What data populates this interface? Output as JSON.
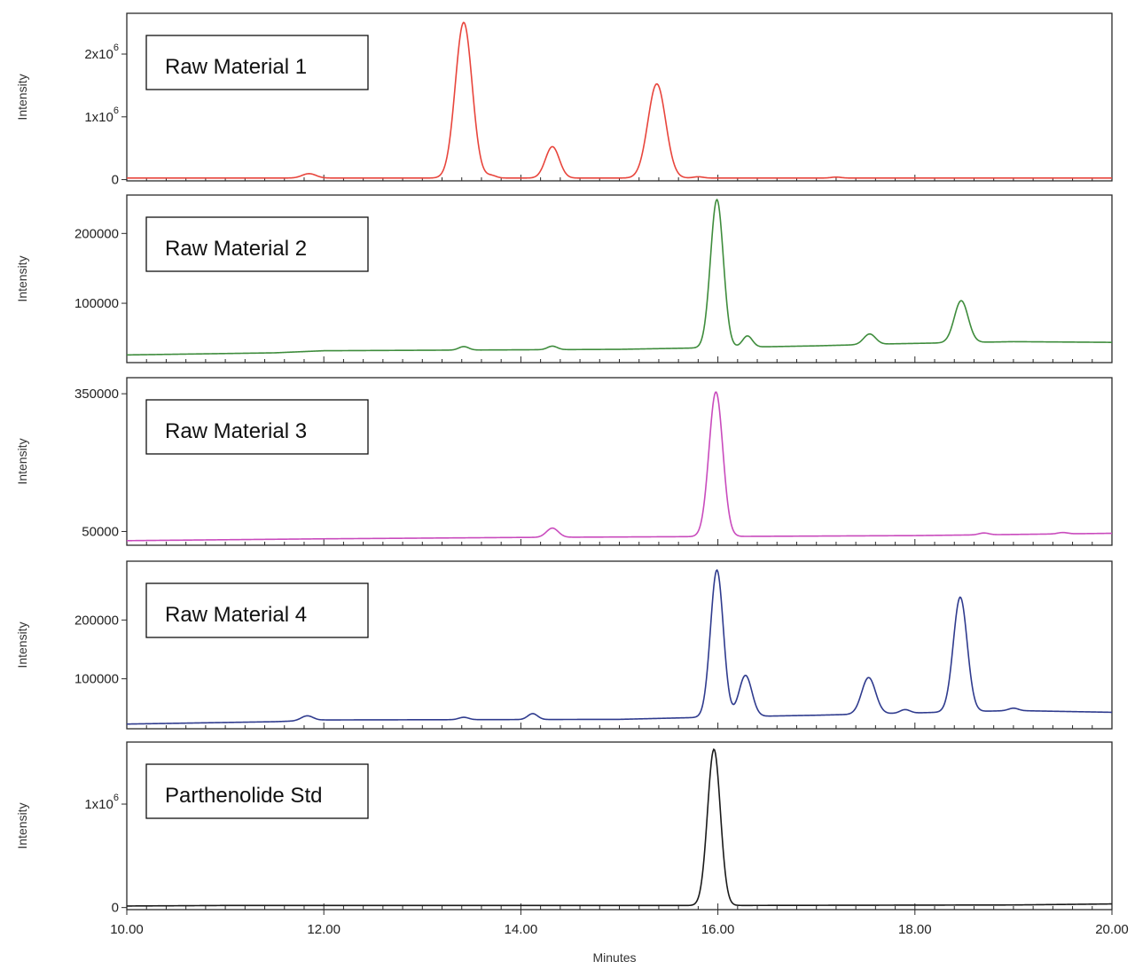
{
  "chart_data": {
    "type": "line",
    "xlabel": "Minutes",
    "xlim": [
      10.0,
      20.0
    ],
    "xticks": [
      "10.00",
      "12.00",
      "14.00",
      "16.00",
      "18.00",
      "20.00"
    ],
    "xtick_values": [
      10,
      12,
      14,
      16,
      18,
      20
    ],
    "panels": [
      {
        "name": "Raw Material 1",
        "ylabel": "Intensity",
        "color": "#e8453c",
        "ylim": [
          -20000,
          2650000
        ],
        "yticks": [
          {
            "label": "0",
            "value": 0
          },
          {
            "label": "1x10",
            "exp": "6",
            "value": 1000000
          },
          {
            "label": "2x10",
            "exp": "6",
            "value": 2000000
          }
        ],
        "baseline": [
          [
            10,
            25000
          ],
          [
            20,
            25000
          ]
        ],
        "peaks": [
          [
            11.85,
            70000,
            0.07
          ],
          [
            13.42,
            2480000,
            0.085
          ],
          [
            13.7,
            40000,
            0.05
          ],
          [
            14.32,
            500000,
            0.07
          ],
          [
            15.38,
            1500000,
            0.09
          ],
          [
            15.8,
            20000,
            0.05
          ],
          [
            17.2,
            15000,
            0.05
          ]
        ]
      },
      {
        "name": "Raw Material 2",
        "ylabel": "Intensity",
        "color": "#3e8c3c",
        "ylim": [
          15000,
          255000
        ],
        "yticks": [
          {
            "label": "100000",
            "value": 100000
          },
          {
            "label": "200000",
            "value": 200000
          }
        ],
        "baseline": [
          [
            10,
            26000
          ],
          [
            11.5,
            29000
          ],
          [
            12,
            32000
          ],
          [
            15,
            34000
          ],
          [
            17,
            39000
          ],
          [
            17.8,
            42000
          ],
          [
            19,
            45000
          ],
          [
            20,
            44000
          ]
        ],
        "peaks": [
          [
            13.42,
            5000,
            0.05
          ],
          [
            14.32,
            5000,
            0.05
          ],
          [
            15.99,
            212000,
            0.065
          ],
          [
            16.3,
            16000,
            0.05
          ],
          [
            17.54,
            15000,
            0.06
          ],
          [
            18.47,
            60000,
            0.07
          ]
        ]
      },
      {
        "name": "Raw Material 3",
        "ylabel": "Intensity",
        "color": "#c94bbd",
        "ylim": [
          20000,
          385000
        ],
        "yticks": [
          {
            "label": "50000",
            "value": 50000
          },
          {
            "label": "350000",
            "value": 350000
          }
        ],
        "baseline": [
          [
            10,
            30000
          ],
          [
            12,
            34000
          ],
          [
            14,
            37000
          ],
          [
            16,
            39000
          ],
          [
            18,
            41000
          ],
          [
            20,
            46000
          ]
        ],
        "peaks": [
          [
            14.32,
            20000,
            0.06
          ],
          [
            15.98,
            315000,
            0.07
          ],
          [
            18.7,
            4000,
            0.05
          ],
          [
            19.5,
            3000,
            0.05
          ]
        ]
      },
      {
        "name": "Raw Material 4",
        "ylabel": "Intensity",
        "color": "#2f3b8e",
        "ylim": [
          15000,
          300000
        ],
        "yticks": [
          {
            "label": "100000",
            "value": 100000
          },
          {
            "label": "200000",
            "value": 200000
          }
        ],
        "baseline": [
          [
            10,
            23000
          ],
          [
            11.5,
            27000
          ],
          [
            12,
            30000
          ],
          [
            15,
            31000
          ],
          [
            16,
            35000
          ],
          [
            17,
            38000
          ],
          [
            18,
            42000
          ],
          [
            19,
            46000
          ],
          [
            20,
            43000
          ]
        ],
        "peaks": [
          [
            11.83,
            8000,
            0.06
          ],
          [
            13.42,
            4000,
            0.05
          ],
          [
            14.12,
            10000,
            0.05
          ],
          [
            15.99,
            250000,
            0.065
          ],
          [
            16.28,
            70000,
            0.065
          ],
          [
            17.53,
            62000,
            0.07
          ],
          [
            18.46,
            195000,
            0.07
          ],
          [
            17.9,
            6000,
            0.05
          ],
          [
            19.0,
            4000,
            0.05
          ]
        ]
      },
      {
        "name": "Parthenolide Std",
        "ylabel": "Intensity",
        "color": "#1a1a1a",
        "ylim": [
          -20000,
          1600000
        ],
        "yticks": [
          {
            "label": "0",
            "value": 0
          },
          {
            "label": "1x10",
            "exp": "6",
            "value": 1000000
          }
        ],
        "baseline": [
          [
            10,
            15000
          ],
          [
            11,
            20000
          ],
          [
            14,
            20000
          ],
          [
            16,
            20000
          ],
          [
            19,
            25000
          ],
          [
            20,
            35000
          ]
        ],
        "peaks": [
          [
            15.96,
            1510000,
            0.065
          ]
        ]
      }
    ]
  }
}
